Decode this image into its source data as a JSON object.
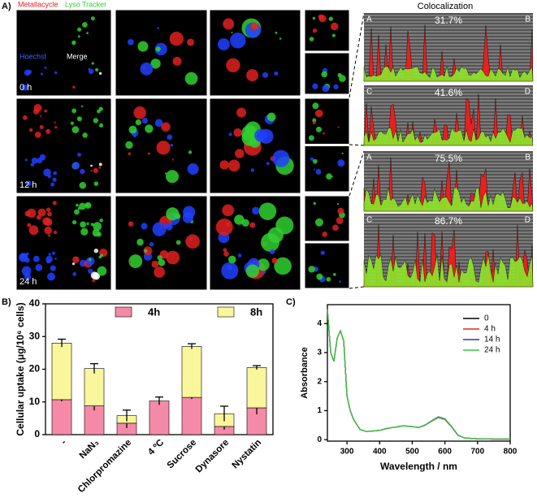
{
  "figure_labels": [
    "A)",
    "B)",
    "C)"
  ],
  "panel_a": {
    "channels": [
      "Metallacycle",
      "Lyso Tracker",
      "Hoechst",
      "Merge"
    ],
    "times": [
      "0 h",
      "12 h",
      "24 h"
    ],
    "colocalization_title": "Colocalization",
    "profiles": [
      {
        "start": "A",
        "end": "B",
        "value": "31.7%"
      },
      {
        "start": "C",
        "end": "D",
        "value": "41.6%"
      },
      {
        "start": "A",
        "end": "B",
        "value": "75.5%"
      },
      {
        "start": "C",
        "end": "D",
        "value": "86.7%"
      }
    ]
  },
  "chart_data": [
    {
      "type": "bar",
      "stacked": true,
      "ylabel": "Cellular uptake (μg/10⁶ cells)",
      "categories": [
        "-",
        "NaN₃",
        "Chlorpromazine",
        "4 ºC",
        "Sucrose",
        "Dynasore",
        "Nystatin"
      ],
      "series": [
        {
          "name": "4h",
          "color": "#f58aa8",
          "values": [
            10.7,
            8.8,
            3.5,
            10.3,
            11.4,
            2.5,
            8.2
          ],
          "errors": [
            0.5,
            1.4,
            1.5,
            1.2,
            0.5,
            1.0,
            2.0
          ]
        },
        {
          "name": "8h",
          "color": "#f9f69c",
          "values": [
            17.3,
            11.4,
            2.3,
            null,
            15.6,
            3.9,
            12.3
          ],
          "errors": [
            1.2,
            1.5,
            1.7,
            null,
            0.8,
            2.3,
            0.6
          ]
        }
      ],
      "ylim": [
        0,
        40
      ],
      "yticks": [
        0,
        10,
        20,
        30,
        40
      ],
      "legend": "top"
    },
    {
      "type": "line",
      "xlabel": "Wavelength / nm",
      "ylabel": "Absorbance",
      "x": [
        240,
        250,
        260,
        270,
        280,
        290,
        300,
        310,
        320,
        340,
        360,
        380,
        400,
        420,
        440,
        460,
        470,
        500,
        520,
        540,
        560,
        580,
        600,
        620,
        640,
        660,
        700,
        750,
        800
      ],
      "series": [
        {
          "name": "0",
          "color": "#000000",
          "values": [
            4.5,
            3.0,
            2.7,
            3.5,
            3.75,
            3.4,
            1.5,
            1.0,
            0.7,
            0.35,
            0.28,
            0.3,
            0.32,
            0.38,
            0.42,
            0.45,
            0.48,
            0.45,
            0.42,
            0.5,
            0.65,
            0.77,
            0.7,
            0.45,
            0.15,
            0.06,
            0.03,
            0.02,
            0.02
          ]
        },
        {
          "name": "4 h",
          "color": "#e8202a",
          "values": [
            4.5,
            3.0,
            2.7,
            3.5,
            3.75,
            3.4,
            1.5,
            1.0,
            0.7,
            0.35,
            0.28,
            0.3,
            0.32,
            0.38,
            0.42,
            0.45,
            0.48,
            0.45,
            0.42,
            0.5,
            0.64,
            0.76,
            0.69,
            0.44,
            0.15,
            0.06,
            0.03,
            0.02,
            0.02
          ]
        },
        {
          "name": "14 h",
          "color": "#2b3a9e",
          "values": [
            4.5,
            3.0,
            2.7,
            3.5,
            3.75,
            3.4,
            1.5,
            1.0,
            0.7,
            0.35,
            0.28,
            0.3,
            0.32,
            0.38,
            0.42,
            0.45,
            0.48,
            0.45,
            0.42,
            0.51,
            0.66,
            0.79,
            0.72,
            0.46,
            0.16,
            0.06,
            0.03,
            0.02,
            0.02
          ]
        },
        {
          "name": "24 h",
          "color": "#33c733",
          "values": [
            4.5,
            3.0,
            2.7,
            3.5,
            3.75,
            3.4,
            1.5,
            1.0,
            0.7,
            0.35,
            0.28,
            0.3,
            0.32,
            0.38,
            0.42,
            0.45,
            0.48,
            0.45,
            0.42,
            0.5,
            0.65,
            0.77,
            0.7,
            0.45,
            0.15,
            0.06,
            0.03,
            0.02,
            0.02
          ]
        }
      ],
      "xlim": [
        240,
        800
      ],
      "xticks": [
        300,
        400,
        500,
        600,
        700,
        800
      ],
      "ylim": [
        -0.05,
        4.65
      ],
      "yticks": [
        0,
        1,
        2,
        3,
        4
      ],
      "legend": "upper right"
    }
  ]
}
